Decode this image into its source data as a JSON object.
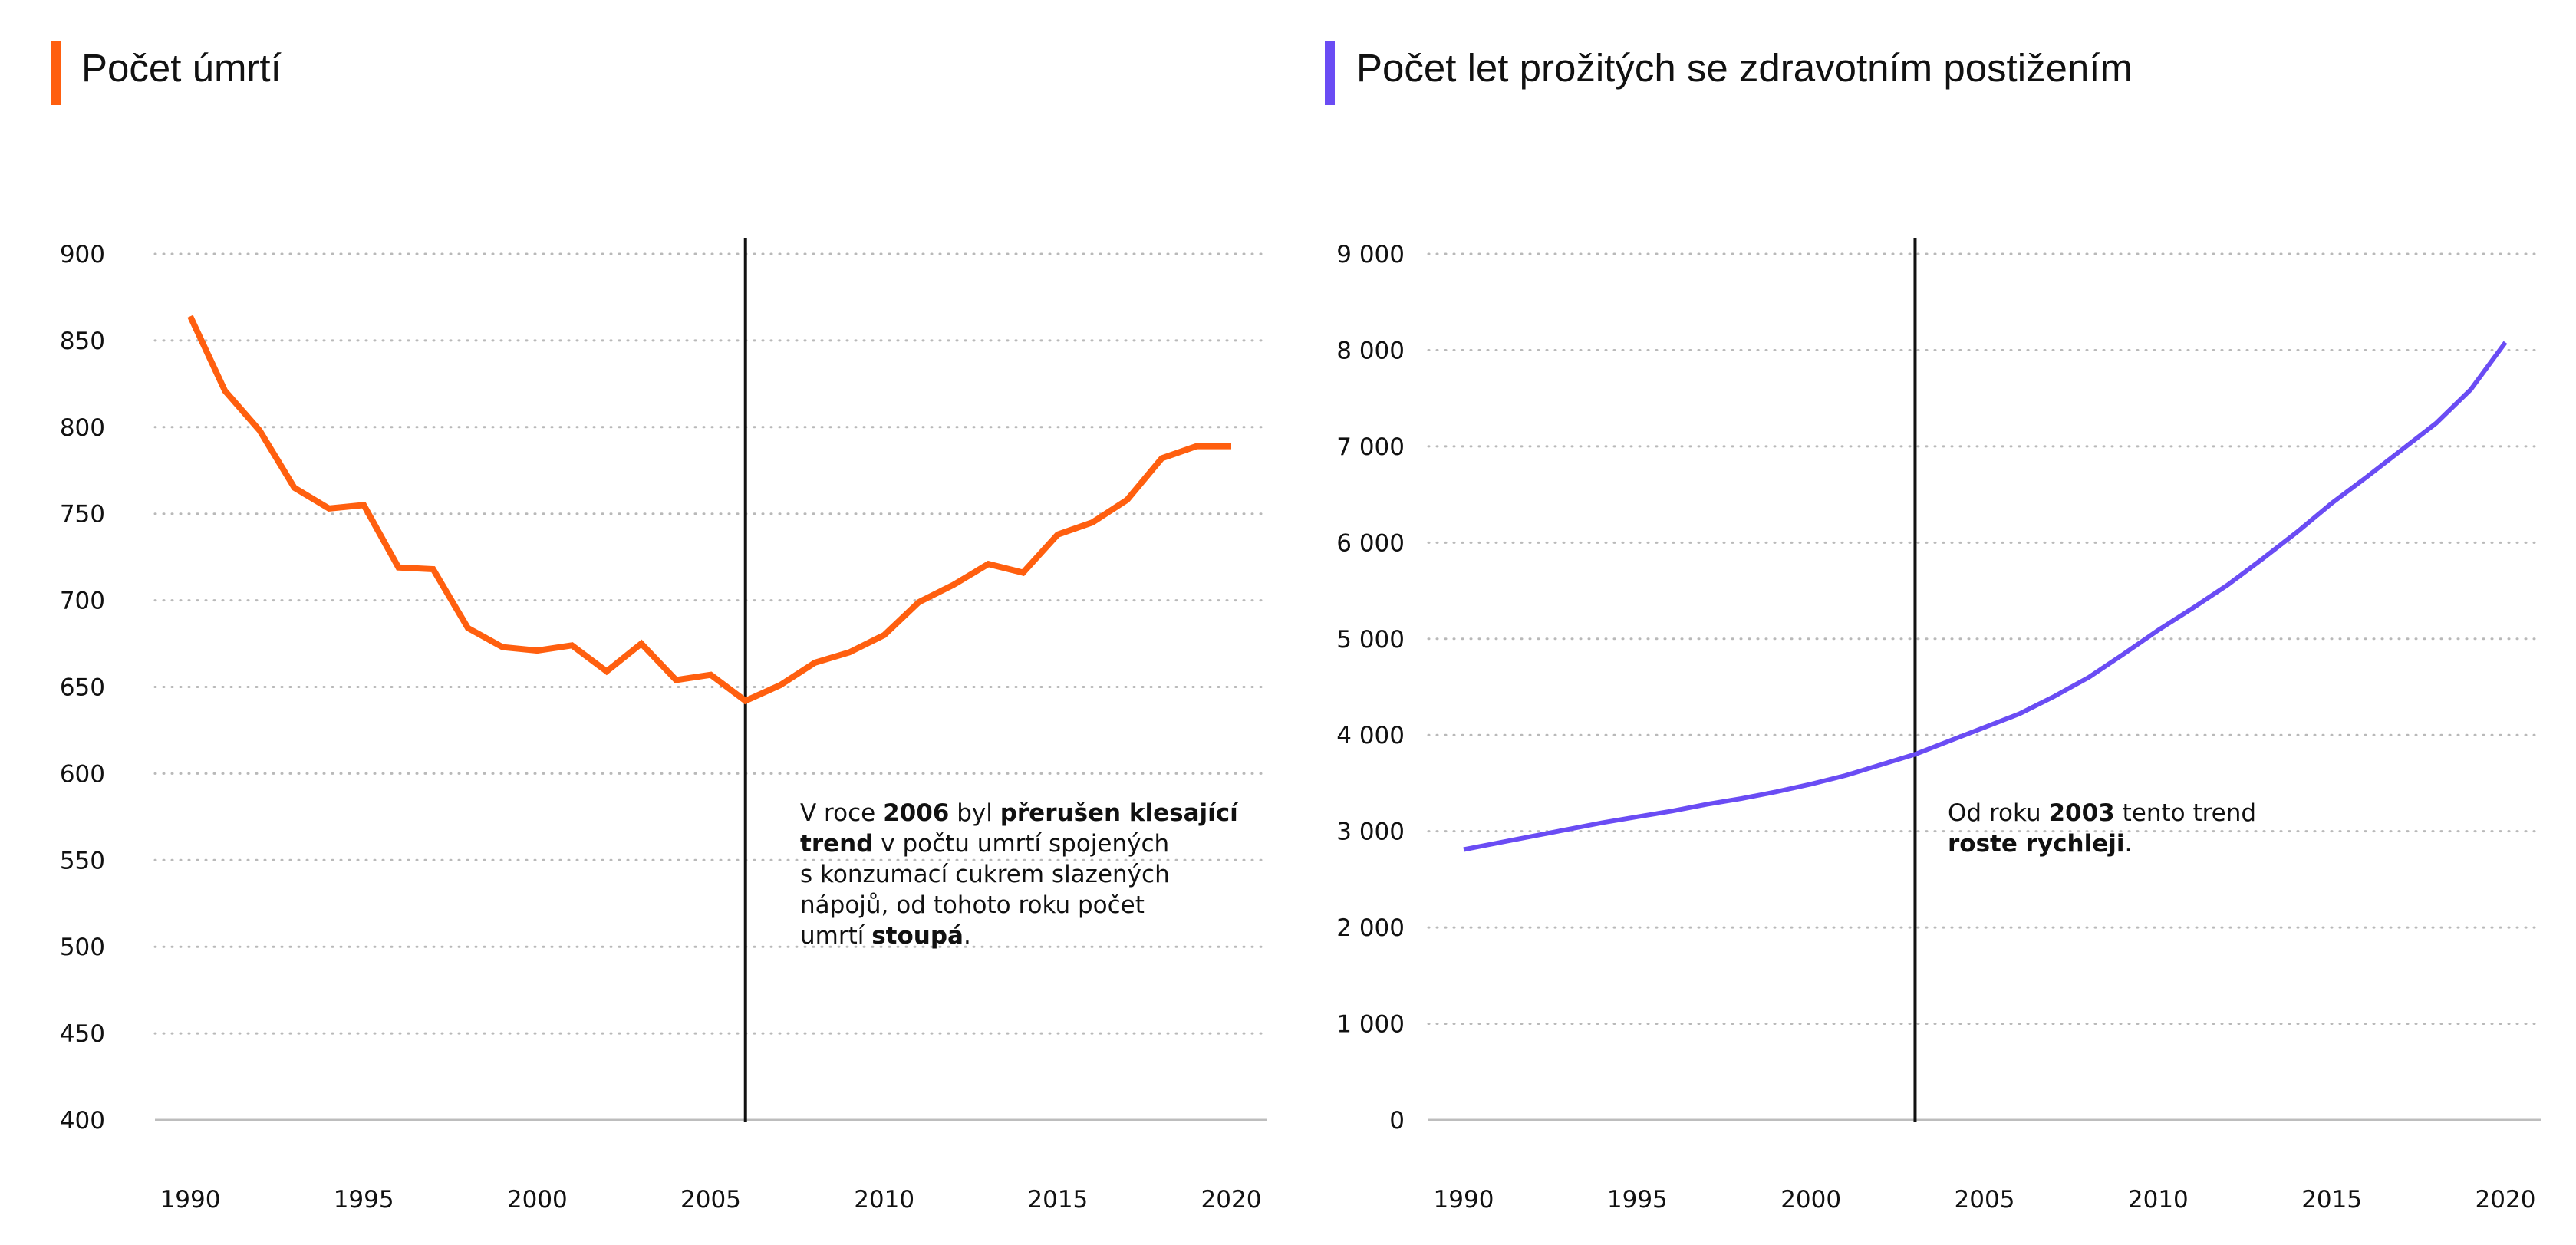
{
  "colors": {
    "left": "#ff5f0f",
    "right": "#6a4cf4",
    "grid": "#b9b9b9",
    "axis": "#bdbdbd",
    "marker": "#111111"
  },
  "chart_data": [
    {
      "type": "line",
      "title": "Počet úmrtí",
      "xlabel": "",
      "ylabel": "",
      "xlim": [
        1990,
        2020
      ],
      "ylim": [
        400,
        900
      ],
      "xticks": [
        1990,
        1995,
        2000,
        2005,
        2010,
        2015,
        2020
      ],
      "yticks": [
        900,
        850,
        800,
        750,
        700,
        650,
        600,
        550,
        500,
        450,
        400
      ],
      "ytick_labels": [
        "900",
        "850",
        "800",
        "750",
        "700",
        "650",
        "600",
        "550",
        "500",
        "450",
        "400"
      ],
      "xtick_labels": [
        "1990",
        "1995",
        "2000",
        "2005",
        "2010",
        "2015",
        "2020"
      ],
      "grid": "horizontal dotted",
      "series": [
        {
          "color": "#ff5f0f",
          "x": [
            1990,
            1991,
            1992,
            1993,
            1994,
            1995,
            1996,
            1997,
            1998,
            1999,
            2000,
            2001,
            2002,
            2003,
            2004,
            2005,
            2006,
            2007,
            2008,
            2009,
            2010,
            2011,
            2012,
            2013,
            2014,
            2015,
            2016,
            2017,
            2018,
            2019,
            2020
          ],
          "values": [
            864,
            821,
            798,
            765,
            753,
            755,
            719,
            718,
            684,
            673,
            671,
            674,
            659,
            675,
            654,
            657,
            642,
            651,
            664,
            670,
            680,
            699,
            709,
            721,
            716,
            738,
            745,
            758,
            782,
            789,
            789
          ]
        }
      ],
      "marker_year": 2006,
      "annotation": [
        [
          {
            "t": "V roce ",
            "b": false
          },
          {
            "t": "2006",
            "b": true
          },
          {
            "t": " byl ",
            "b": false
          },
          {
            "t": "přerušen klesající",
            "b": true
          }
        ],
        [
          {
            "t": "trend",
            "b": true
          },
          {
            "t": " v počtu umrtí spojených",
            "b": false
          }
        ],
        [
          {
            "t": "s konzumací cukrem slazených",
            "b": false
          }
        ],
        [
          {
            "t": "nápojů, od tohoto roku počet",
            "b": false
          }
        ],
        [
          {
            "t": "umrtí ",
            "b": false
          },
          {
            "t": "stoupá",
            "b": true
          },
          {
            "t": ".",
            "b": false
          }
        ]
      ]
    },
    {
      "type": "line",
      "title": "Počet let prožitých se zdravotním postižením",
      "xlabel": "",
      "ylabel": "",
      "xlim": [
        1990,
        2020
      ],
      "ylim": [
        0,
        9000
      ],
      "xticks": [
        1990,
        1995,
        2000,
        2005,
        2010,
        2015,
        2020
      ],
      "yticks": [
        9000,
        8000,
        7000,
        6000,
        5000,
        4000,
        3000,
        2000,
        1000,
        0
      ],
      "ytick_labels": [
        "9 000",
        "8 000",
        "7 000",
        "6 000",
        "5 000",
        "4 000",
        "3 000",
        "2 000",
        "1 000",
        "0"
      ],
      "xtick_labels": [
        "1990",
        "1995",
        "2000",
        "2005",
        "2010",
        "2015",
        "2020"
      ],
      "grid": "horizontal dotted",
      "series": [
        {
          "color": "#6a4cf4",
          "x": [
            1990,
            1991,
            1992,
            1993,
            1994,
            1995,
            1996,
            1997,
            1998,
            1999,
            2000,
            2001,
            2002,
            2003,
            2004,
            2005,
            2006,
            2007,
            2008,
            2009,
            2010,
            2011,
            2012,
            2013,
            2014,
            2015,
            2016,
            2017,
            2018,
            2019,
            2020
          ],
          "values": [
            2810,
            2880,
            2950,
            3020,
            3090,
            3150,
            3210,
            3280,
            3340,
            3410,
            3490,
            3580,
            3690,
            3800,
            3940,
            4080,
            4220,
            4400,
            4600,
            4840,
            5090,
            5320,
            5560,
            5830,
            6110,
            6410,
            6680,
            6960,
            7240,
            7590,
            8080
          ]
        }
      ],
      "marker_year": 2003,
      "annotation": [
        [
          {
            "t": "Od roku ",
            "b": false
          },
          {
            "t": "2003",
            "b": true
          },
          {
            "t": " tento trend",
            "b": false
          }
        ],
        [
          {
            "t": "roste rychleji",
            "b": true
          },
          {
            "t": ".",
            "b": false
          }
        ]
      ]
    }
  ]
}
